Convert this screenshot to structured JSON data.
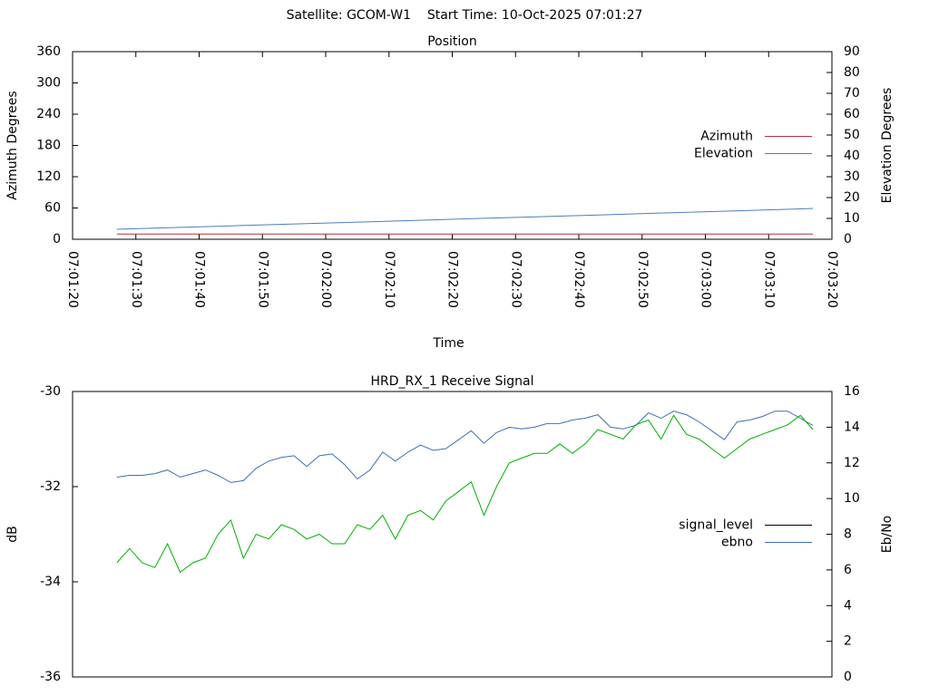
{
  "title": "Satellite: GCOM-W1    Start Time: 10-Oct-2025 07:01:27",
  "chart_data": [
    {
      "type": "line",
      "title": "Position",
      "xlabel": "Time",
      "ylabel": "Azimuth Degrees",
      "y2label": "Elevation Degrees",
      "x": [
        "07:01:27",
        "07:01:37",
        "07:01:47",
        "07:01:57",
        "07:02:07",
        "07:02:17",
        "07:02:27",
        "07:02:37",
        "07:02:47",
        "07:02:57",
        "07:03:07",
        "07:03:17"
      ],
      "xlim": [
        "07:01:20",
        "07:03:20"
      ],
      "xticks": [
        "07:01:20",
        "07:01:30",
        "07:01:40",
        "07:01:50",
        "07:02:00",
        "07:02:10",
        "07:02:20",
        "07:02:30",
        "07:02:40",
        "07:02:50",
        "07:03:00",
        "07:03:10",
        "07:03:20"
      ],
      "ylim": [
        0,
        360
      ],
      "yticks": [
        0,
        60,
        120,
        180,
        240,
        300,
        360
      ],
      "y2lim": [
        0,
        90
      ],
      "y2ticks": [
        0,
        10,
        20,
        30,
        40,
        50,
        60,
        70,
        80,
        90
      ],
      "legend": "right",
      "series": [
        {
          "name": "Azimuth",
          "color": "#b03040",
          "values": [
            10,
            10,
            10,
            10,
            10,
            10,
            10,
            10,
            10,
            10,
            10,
            10
          ]
        },
        {
          "name": "Elevation",
          "color": "#4a7fc0",
          "axis": "y2",
          "values": [
            4.8,
            5.7,
            6.6,
            7.5,
            8.4,
            9.3,
            10.2,
            11.1,
            12.0,
            12.9,
            13.8,
            14.8
          ]
        }
      ]
    },
    {
      "type": "line",
      "title": "HRD_RX_1 Receive Signal",
      "ylabel": "dB",
      "y2label": "Eb/No",
      "x": [
        "07:01:27",
        "07:01:29",
        "07:01:31",
        "07:01:33",
        "07:01:35",
        "07:01:37",
        "07:01:39",
        "07:01:41",
        "07:01:43",
        "07:01:45",
        "07:01:47",
        "07:01:49",
        "07:01:51",
        "07:01:53",
        "07:01:55",
        "07:01:57",
        "07:01:59",
        "07:02:01",
        "07:02:03",
        "07:02:05",
        "07:02:07",
        "07:02:09",
        "07:02:11",
        "07:02:13",
        "07:02:15",
        "07:02:17",
        "07:02:19",
        "07:02:21",
        "07:02:23",
        "07:02:25",
        "07:02:27",
        "07:02:29",
        "07:02:31",
        "07:02:33",
        "07:02:35",
        "07:02:37",
        "07:02:39",
        "07:02:41",
        "07:02:43",
        "07:02:45",
        "07:02:47",
        "07:02:49",
        "07:02:51",
        "07:02:53",
        "07:02:55",
        "07:02:57",
        "07:02:59",
        "07:03:01",
        "07:03:03",
        "07:03:05",
        "07:03:07",
        "07:03:09",
        "07:03:11",
        "07:03:13",
        "07:03:15",
        "07:03:17"
      ],
      "xlim": [
        "07:01:20",
        "07:03:20"
      ],
      "ylim": [
        -36,
        -30
      ],
      "yticks": [
        -36,
        -34,
        -32,
        -30
      ],
      "y2lim": [
        0,
        16
      ],
      "y2ticks": [
        0,
        2,
        4,
        6,
        8,
        10,
        12,
        14,
        16
      ],
      "legend": "right",
      "series": [
        {
          "name": "signal_level",
          "color": "#000000",
          "values": [
            null,
            null,
            null,
            null,
            null,
            null,
            null,
            null,
            null,
            null,
            null,
            null,
            null,
            null,
            null,
            null,
            null,
            null,
            null,
            null,
            null,
            null,
            null,
            null,
            null,
            null,
            null,
            null,
            null,
            null,
            null,
            null,
            null,
            null,
            null,
            null,
            null,
            null,
            null,
            null,
            null,
            null,
            null,
            null,
            null,
            null,
            null,
            null,
            null,
            null,
            null,
            null,
            null,
            null,
            null,
            null
          ]
        },
        {
          "name": "ebno",
          "color": "#3c6fb8",
          "axis": "y2",
          "values": [
            11.2,
            11.3,
            11.3,
            11.4,
            11.6,
            11.2,
            11.4,
            11.6,
            11.3,
            10.9,
            11.0,
            11.7,
            12.1,
            12.3,
            12.4,
            11.8,
            12.4,
            12.5,
            11.9,
            11.1,
            11.6,
            12.6,
            12.1,
            12.6,
            13.0,
            12.7,
            12.8,
            13.3,
            13.8,
            13.1,
            13.7,
            14.0,
            13.9,
            14.0,
            14.2,
            14.2,
            14.4,
            14.5,
            14.7,
            14.0,
            13.9,
            14.1,
            14.8,
            14.5,
            14.9,
            14.7,
            14.3,
            13.8,
            13.3,
            14.3,
            14.4,
            14.6,
            14.9,
            14.9,
            14.5,
            14.1
          ]
        },
        {
          "color": "#00b000",
          "values": [
            -33.6,
            -33.3,
            -33.6,
            -33.7,
            -33.2,
            -33.8,
            -33.6,
            -33.5,
            -33.0,
            -32.7,
            -33.5,
            -33.0,
            -33.1,
            -32.8,
            -32.9,
            -33.1,
            -33.0,
            -33.2,
            -33.2,
            -32.8,
            -32.9,
            -32.6,
            -33.1,
            -32.6,
            -32.5,
            -32.7,
            -32.3,
            -32.1,
            -31.9,
            -32.6,
            -32.0,
            -31.5,
            -31.4,
            -31.3,
            -31.3,
            -31.1,
            -31.3,
            -31.1,
            -30.8,
            -30.9,
            -31.0,
            -30.7,
            -30.6,
            -31.0,
            -30.5,
            -30.9,
            -31.0,
            -31.2,
            -31.4,
            -31.2,
            -31.0,
            -30.9,
            -30.8,
            -30.7,
            -30.5,
            -30.8
          ]
        }
      ]
    }
  ]
}
